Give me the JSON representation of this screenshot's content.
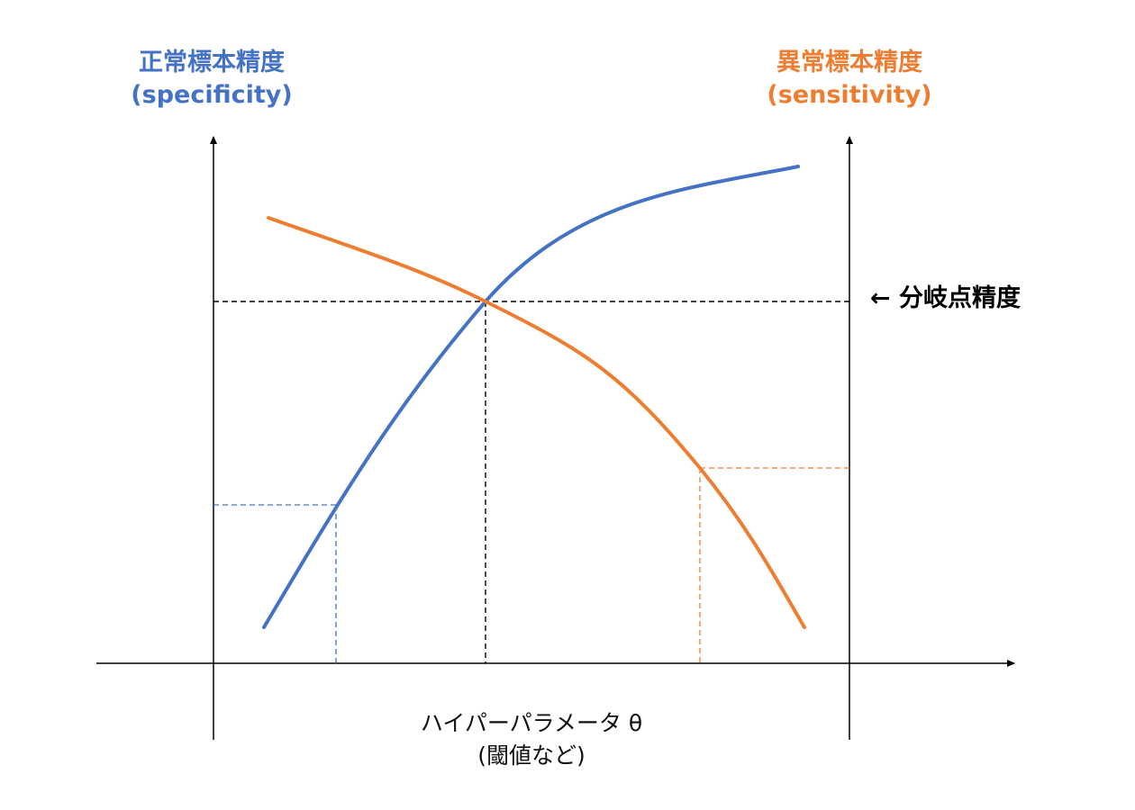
{
  "left_axis": {
    "title_line1": "正常標本精度",
    "title_line2": "(specificity)",
    "color": "#4472C4"
  },
  "right_axis": {
    "title_line1": "異常標本精度",
    "title_line2": "(sensitivity)",
    "color": "#ED7D31"
  },
  "x_axis": {
    "title_line1": "ハイパーパラメータ θ",
    "title_line2": "(閾値など)"
  },
  "breakeven_label": "← 分岐点精度",
  "guide_colors": {
    "breakeven": "#000000",
    "specificity": "#4472C4",
    "sensitivity": "#ED7D31"
  }
}
